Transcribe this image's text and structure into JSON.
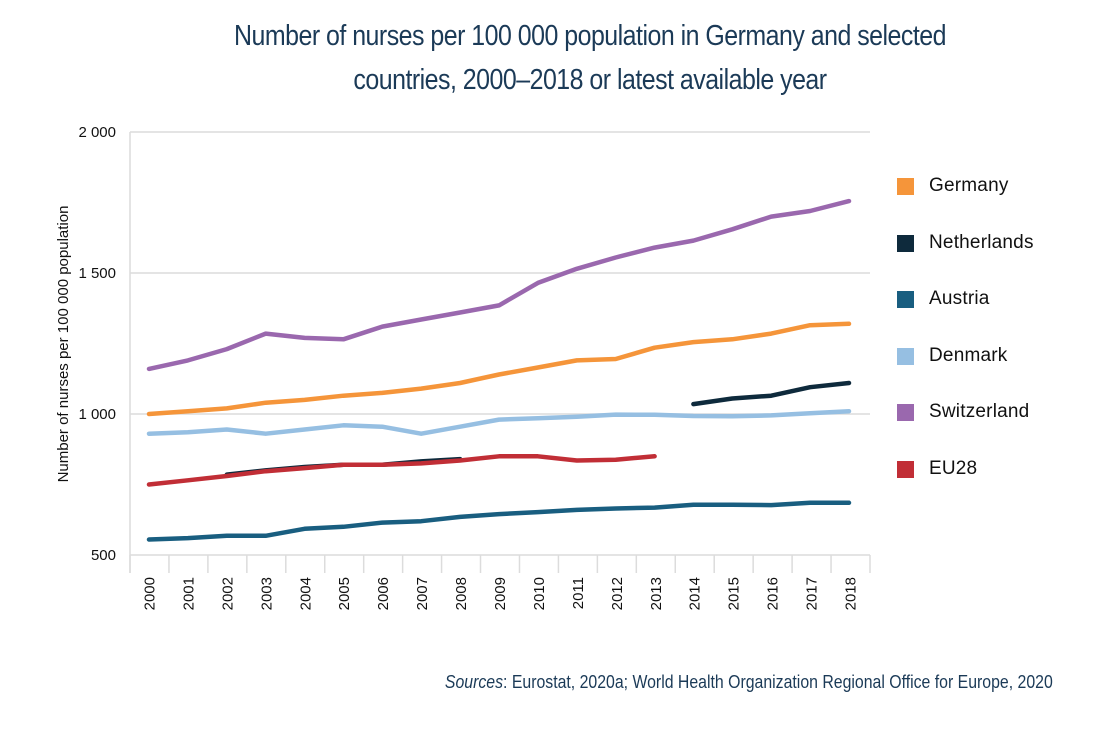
{
  "chart_data": {
    "type": "line",
    "title": "Number of nurses per 100 000 population in Germany and selected countries, 2000–2018 or latest available year",
    "title_lines": [
      "Number of nurses per 100 000 population in Germany and selected",
      "countries, 2000–2018 or latest available year"
    ],
    "xlabel": "",
    "ylabel": "Number of nurses per 100 000 population",
    "ylim": [
      500,
      2000
    ],
    "yticks": [
      500,
      1000,
      1500,
      2000
    ],
    "ytick_labels": [
      "500",
      "1 000",
      "1 500",
      "2 000"
    ],
    "grid": true,
    "legend_position": "right",
    "x": [
      "2000",
      "2001",
      "2002",
      "2003",
      "2004",
      "2005",
      "2006",
      "2007",
      "2008",
      "2009",
      "2010",
      "2011",
      "2012",
      "2013",
      "2014",
      "2015",
      "2016",
      "2017",
      "2018"
    ],
    "series": [
      {
        "name": "Germany",
        "color": "#f5953a",
        "values": [
          1000,
          1010,
          1020,
          1040,
          1050,
          1065,
          1075,
          1090,
          1110,
          1140,
          1165,
          1190,
          1195,
          1235,
          1255,
          1265,
          1285,
          1315,
          1320
        ]
      },
      {
        "name": "Netherlands",
        "color": "#0e2a3c",
        "values": [
          null,
          null,
          785,
          800,
          812,
          820,
          820,
          832,
          840,
          null,
          null,
          null,
          null,
          null,
          1035,
          1055,
          1065,
          1095,
          1110
        ]
      },
      {
        "name": "Austria",
        "color": "#195e80",
        "values": [
          555,
          560,
          568,
          568,
          593,
          600,
          615,
          620,
          635,
          645,
          652,
          660,
          665,
          668,
          678,
          678,
          677,
          685,
          685
        ]
      },
      {
        "name": "Denmark",
        "color": "#96bfe2",
        "values": [
          930,
          935,
          945,
          930,
          945,
          960,
          955,
          930,
          955,
          980,
          985,
          990,
          998,
          997,
          993,
          992,
          995,
          1003,
          1010
        ]
      },
      {
        "name": "Switzerland",
        "color": "#9a68ae",
        "values": [
          1160,
          1190,
          1230,
          1285,
          1270,
          1265,
          1310,
          1335,
          1360,
          1385,
          1465,
          1515,
          1555,
          1590,
          1615,
          1655,
          1700,
          1720,
          1755
        ]
      },
      {
        "name": "EU28",
        "color": "#c12e36",
        "values": [
          750,
          765,
          780,
          797,
          808,
          820,
          820,
          825,
          835,
          850,
          850,
          835,
          838,
          850,
          null,
          null,
          null,
          null,
          null
        ]
      }
    ],
    "draw_order": [
      "Denmark",
      "Netherlands",
      "EU28",
      "Austria",
      "Germany",
      "Switzerland"
    ]
  },
  "sources": {
    "label": "Sources",
    "text": ": Eurostat, 2020a; World Health Organization Regional Office for Europe, 2020"
  }
}
